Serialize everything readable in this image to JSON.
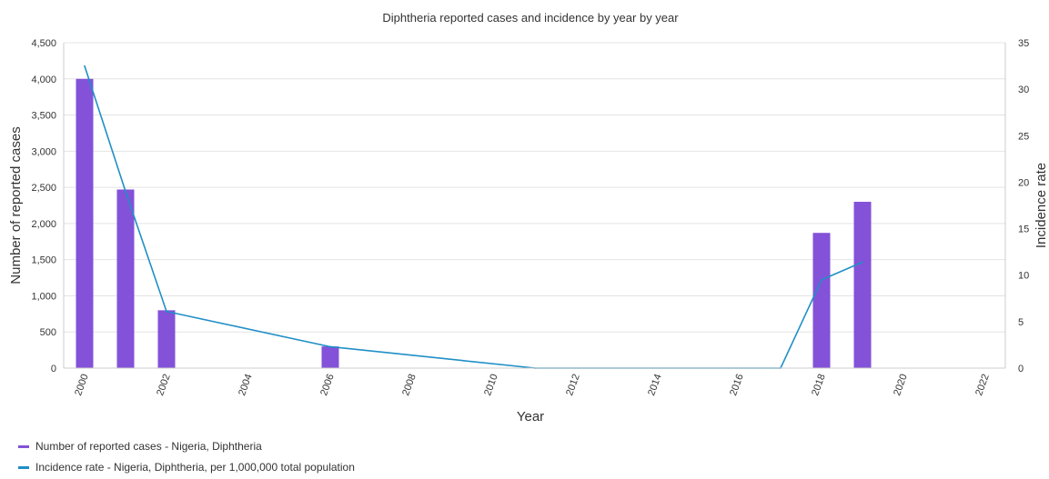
{
  "chart_data": {
    "type": "bar",
    "title": "Diphtheria reported cases and incidence by year by year",
    "xlabel": "Year",
    "ylabel": "Number of reported cases",
    "y2label": "Incidence rate",
    "xlim": [
      2000,
      2022
    ],
    "x_ticks": [
      "2000",
      "2002",
      "2004",
      "2006",
      "2008",
      "2010",
      "2012",
      "2014",
      "2016",
      "2018",
      "2020",
      "2022"
    ],
    "ylim": [
      0,
      4500
    ],
    "y_ticks": [
      "0",
      "500",
      "1,000",
      "1,500",
      "2,000",
      "2,500",
      "3,000",
      "3,500",
      "4,000",
      "4,500"
    ],
    "y2lim": [
      0,
      35
    ],
    "y2_ticks": [
      "0",
      "5",
      "10",
      "15",
      "20",
      "25",
      "30",
      "35"
    ],
    "grid": true,
    "legend_position": "bottom-left",
    "series": [
      {
        "name": "Number of reported cases - Nigeria, Diphtheria",
        "type": "bar",
        "axis": "left",
        "color": "#8352d8",
        "x": [
          2000,
          2001,
          2002,
          2006,
          2018,
          2019
        ],
        "values": [
          4000,
          2470,
          800,
          300,
          1870,
          2300
        ]
      },
      {
        "name": "Incidence rate - Nigeria, Diphtheria, per 1,000,000 total population",
        "type": "line",
        "axis": "right",
        "color": "#1f8fc6",
        "x": [
          2000,
          2001,
          2002,
          2006,
          2011,
          2017,
          2018,
          2019
        ],
        "values": [
          32.5,
          19,
          6.1,
          2.3,
          0,
          0,
          9.5,
          11.4
        ]
      }
    ]
  }
}
